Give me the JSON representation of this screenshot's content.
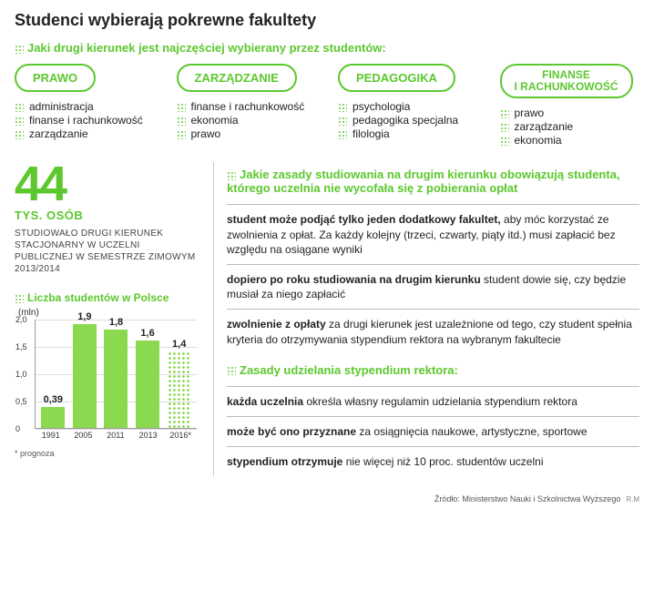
{
  "title": "Studenci wybierają pokrewne fakultety",
  "faculties": {
    "heading": "Jaki drugi kierunek jest najczęściej wybierany przez studentów:",
    "items": [
      {
        "label": "PRAWO",
        "sub": [
          "administracja",
          "finanse i rachunkowość",
          "zarządzanie"
        ]
      },
      {
        "label": "ZARZĄDZANIE",
        "sub": [
          "finanse i rachunkowość",
          "ekonomia",
          "prawo"
        ]
      },
      {
        "label": "PEDAGOGIKA",
        "sub": [
          "psychologia",
          "pedagogika specjalna",
          "filologia"
        ]
      },
      {
        "label": "FINANSE I RACHUNKOWOŚĆ",
        "sub": [
          "prawo",
          "zarządzanie",
          "ekonomia"
        ]
      }
    ]
  },
  "bigstat": {
    "number": "44",
    "unit": "TYS. OSÓB",
    "desc": "STUDIOWAŁO DRUGI KIERUNEK STACJONARNY W UCZELNI PUBLICZNEJ W SEMESTRZE ZIMOWYM 2013/2014"
  },
  "chart": {
    "title": "Liczba studentów w Polsce",
    "unit": "(mln)",
    "ylim_max": 2.0,
    "yticks": [
      0,
      0.5,
      1.0,
      1.5,
      2.0
    ],
    "ylabels": [
      "0",
      "0,5",
      "1,0",
      "1,5",
      "2,0"
    ],
    "bar_color": "#8bd94f",
    "bars": [
      {
        "year": "1991",
        "value": 0.39,
        "label": "0,39",
        "forecast": false
      },
      {
        "year": "2005",
        "value": 1.9,
        "label": "1,9",
        "forecast": false
      },
      {
        "year": "2011",
        "value": 1.8,
        "label": "1,8",
        "forecast": false
      },
      {
        "year": "2013",
        "value": 1.6,
        "label": "1,6",
        "forecast": false
      },
      {
        "year": "2016*",
        "value": 1.4,
        "label": "1,4",
        "forecast": true
      }
    ],
    "footnote": "* prognoza"
  },
  "rules1": {
    "heading": "Jakie zasady studiowania na drugim kierunku obowiązują studenta, którego uczelnia nie wycofała się z pobierania opłat",
    "items": [
      {
        "bold": "student może podjąć tylko jeden dodatkowy fakultet,",
        "rest": " aby móc korzystać ze zwolnienia z opłat. Za każdy kolejny (trzeci, czwarty, piąty itd.) musi zapłacić bez względu na osiągane wyniki"
      },
      {
        "bold": "dopiero po roku studiowania na drugim kierunku",
        "rest": " student dowie się, czy będzie musiał za niego zapłacić"
      },
      {
        "bold": "zwolnienie z opłaty",
        "rest": " za drugi kierunek jest uzależnione od tego, czy student spełnia kryteria do otrzymywania stypendium rektora na wybranym fakultecie"
      }
    ]
  },
  "rules2": {
    "heading": "Zasady udzielania stypendium rektora:",
    "items": [
      {
        "bold": "każda uczelnia",
        "rest": " określa własny regulamin udzielania stypendium rektora"
      },
      {
        "bold": "może być ono przyznane",
        "rest": " za osiągnięcia naukowe, artystyczne, sportowe"
      },
      {
        "bold": "stypendium otrzymuje",
        "rest": " nie więcej niż 10 proc. studentów uczelni"
      }
    ]
  },
  "source": "Źródło: Ministerstwo Nauki i Szkolnictwa Wyższego",
  "source_tag": "R.M"
}
